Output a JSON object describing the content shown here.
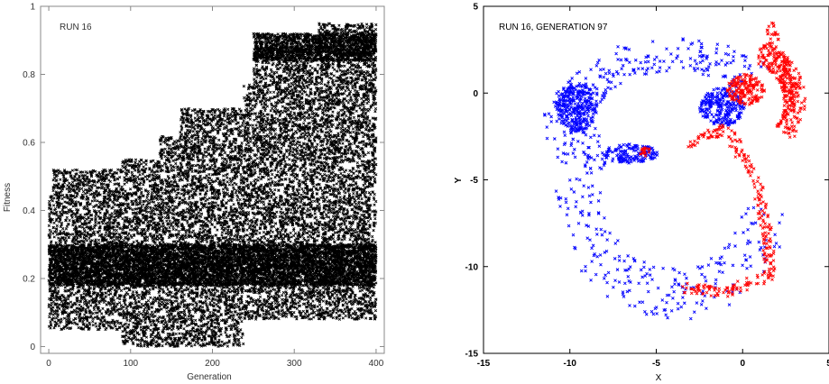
{
  "chart_data": [
    {
      "type": "scatter",
      "annotation": "RUN 16",
      "title": "",
      "xlabel": "Generation",
      "ylabel": "Fitness",
      "xlim": [
        -10,
        410
      ],
      "ylim": [
        -0.02,
        1.0
      ],
      "xticks": [
        0,
        100,
        200,
        300,
        400
      ],
      "yticks": [
        0,
        0.2,
        0.4,
        0.6,
        0.8,
        1
      ],
      "xtick_labels": [
        "0",
        "100",
        "200",
        "300",
        "400"
      ],
      "ytick_labels": [
        "0",
        "0.2",
        "0.4",
        "0.6",
        "0.8",
        "1"
      ],
      "grid": false,
      "marker": "x",
      "color": "#000000",
      "series": [
        {
          "bands": [
            {
              "x_range": [
                0,
                5
              ],
              "y_range": [
                0.05,
                0.45
              ]
            },
            {
              "x_range": [
                5,
                90
              ],
              "y_range": [
                0.05,
                0.52
              ]
            },
            {
              "x_range": [
                90,
                135
              ],
              "y_range": [
                0.0,
                0.55
              ]
            },
            {
              "x_range": [
                135,
                160
              ],
              "y_range": [
                0.0,
                0.62
              ]
            },
            {
              "x_range": [
                160,
                238
              ],
              "y_range": [
                0.0,
                0.7
              ]
            },
            {
              "x_range": [
                238,
                250
              ],
              "y_range": [
                0.08,
                0.77
              ]
            },
            {
              "x_range": [
                250,
                330
              ],
              "y_range": [
                0.08,
                0.88
              ]
            },
            {
              "x_range": [
                330,
                400
              ],
              "y_range": [
                0.08,
                0.95
              ]
            }
          ],
          "dense_bands": [
            {
              "x_range": [
                250,
                400
              ],
              "y_range": [
                0.84,
                0.92
              ]
            },
            {
              "x_range": [
                0,
                400
              ],
              "y_range": [
                0.18,
                0.3
              ]
            }
          ]
        }
      ]
    },
    {
      "type": "scatter",
      "annotation": "RUN 16, GENERATION 97",
      "title": "",
      "xlabel": "X",
      "ylabel": "Y",
      "xlim": [
        -15,
        5
      ],
      "ylim": [
        -15,
        5
      ],
      "xticks": [
        -15,
        -10,
        -5,
        0,
        5
      ],
      "yticks": [
        -15,
        -10,
        -5,
        0,
        5
      ],
      "xtick_labels": [
        "-15",
        "-10",
        "-5",
        "0",
        "5"
      ],
      "ytick_labels": [
        "-15",
        "-10",
        "-5",
        "0",
        "5"
      ],
      "grid": false,
      "marker": "x",
      "series": [
        {
          "color": "#0000ff",
          "regions": [
            {
              "kind": "blob",
              "cx": -9.6,
              "cy": -0.8,
              "rx": 1.2,
              "ry": 1.4
            },
            {
              "kind": "blob",
              "cx": -6.5,
              "cy": -3.5,
              "rx": 1.6,
              "ry": 0.55
            },
            {
              "kind": "blob",
              "cx": -1.2,
              "cy": -0.8,
              "rx": 1.3,
              "ry": 1.1
            },
            {
              "kind": "arc",
              "cx": -4.0,
              "cy": -1.6,
              "rx": 6.0,
              "ry": 3.8,
              "t0": 40,
              "t1": 220
            },
            {
              "kind": "arc",
              "cx": -4.0,
              "cy": -5.6,
              "rx": 5.6,
              "ry": 6.0,
              "t0": 150,
              "t1": 350
            }
          ]
        },
        {
          "color": "#ff0000",
          "regions": [
            {
              "kind": "blob",
              "cx": 0.2,
              "cy": 0.2,
              "rx": 1.1,
              "ry": 0.9
            },
            {
              "kind": "blob",
              "cx": -5.6,
              "cy": -3.4,
              "rx": 0.35,
              "ry": 0.3
            },
            {
              "kind": "arc",
              "cx": 0.5,
              "cy": -0.5,
              "rx": 2.5,
              "ry": 2.8,
              "t0": -40,
              "t1": 80
            },
            {
              "kind": "path",
              "points": [
                [
                  -3.2,
                  -3.0
                ],
                [
                  -1.0,
                  -2.0
                ],
                [
                  0.8,
                  -5.0
                ],
                [
                  1.4,
                  -8.0
                ],
                [
                  1.6,
                  -10.5
                ],
                [
                  -1.0,
                  -11.5
                ],
                [
                  -3.5,
                  -11.2
                ]
              ]
            },
            {
              "kind": "path",
              "points": [
                [
                  1.5,
                  4.0
                ],
                [
                  2.4,
                  1.5
                ],
                [
                  2.8,
                  -0.5
                ]
              ]
            }
          ]
        }
      ]
    }
  ]
}
